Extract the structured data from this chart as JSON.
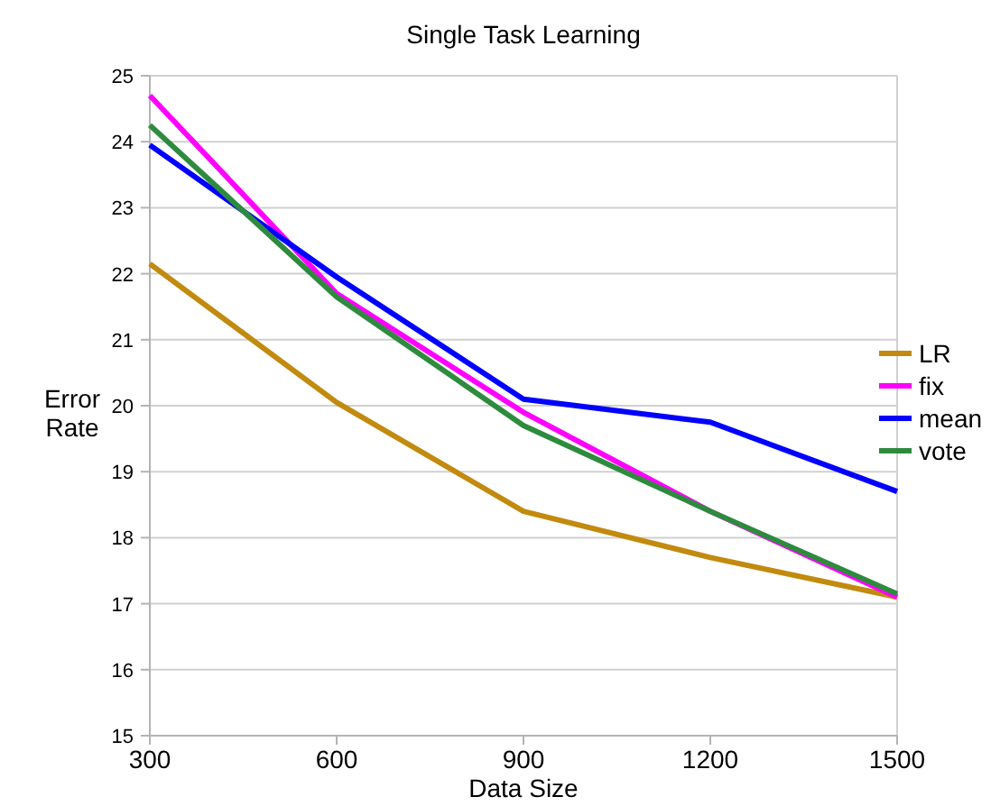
{
  "chart_data": {
    "type": "line",
    "title": "Single Task Learning",
    "xlabel": "Data Size",
    "ylabel": "Error Rate",
    "x": [
      300,
      600,
      900,
      1200,
      1500
    ],
    "xlim": [
      300,
      1500
    ],
    "xticks": [
      300,
      600,
      900,
      1200,
      1500
    ],
    "ylim": [
      15,
      25
    ],
    "yticks": [
      15,
      16,
      17,
      18,
      19,
      20,
      21,
      22,
      23,
      24,
      25
    ],
    "grid": "y",
    "legend": "right",
    "marker": "none",
    "line_style": "solid",
    "series": [
      {
        "name": "LR",
        "color": "#c28a0e",
        "values": [
          22.15,
          20.05,
          18.4,
          17.7,
          17.1
        ]
      },
      {
        "name": "fix",
        "color": "#ff00ff",
        "values": [
          24.7,
          21.7,
          19.9,
          18.4,
          17.1
        ]
      },
      {
        "name": "mean",
        "color": "#0000ff",
        "values": [
          23.95,
          21.95,
          20.1,
          19.75,
          18.7
        ]
      },
      {
        "name": "vote",
        "color": "#2e8b3e",
        "values": [
          24.25,
          21.65,
          19.7,
          18.4,
          17.15
        ]
      }
    ]
  }
}
